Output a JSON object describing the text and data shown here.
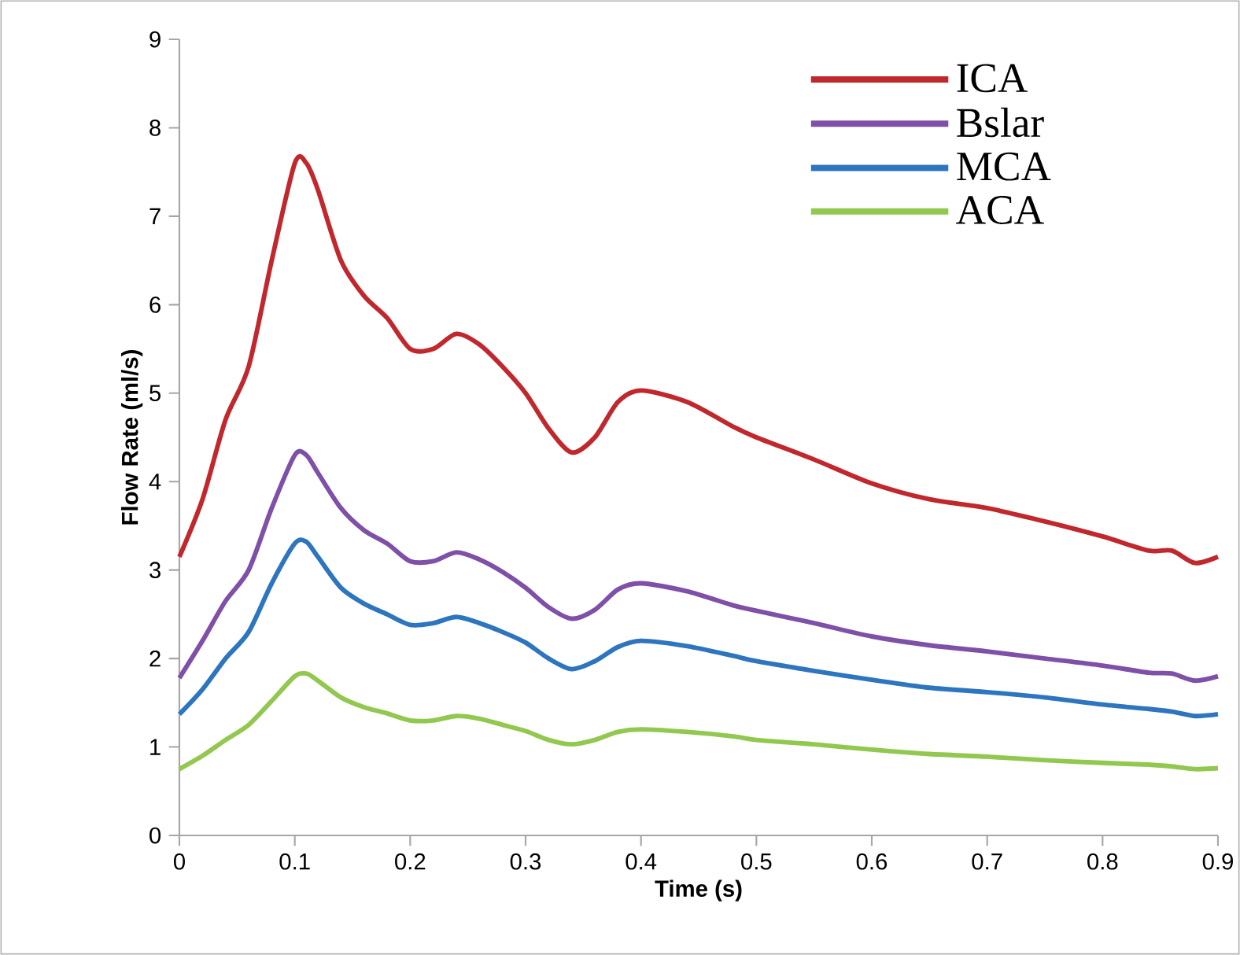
{
  "chart_data": {
    "type": "line",
    "xlabel": "Time (s)",
    "ylabel": "Flow Rate (ml/s)",
    "xlim": [
      0,
      0.9
    ],
    "ylim": [
      0,
      9
    ],
    "xticks": [
      {
        "value": 0,
        "label": "0"
      },
      {
        "value": 0.1,
        "label": "0.1"
      },
      {
        "value": 0.2,
        "label": "0.2"
      },
      {
        "value": 0.3,
        "label": "0.3"
      },
      {
        "value": 0.4,
        "label": "0.4"
      },
      {
        "value": 0.5,
        "label": "0.5"
      },
      {
        "value": 0.6,
        "label": "0.6"
      },
      {
        "value": 0.7,
        "label": "0.7"
      },
      {
        "value": 0.8,
        "label": "0.8"
      },
      {
        "value": 0.9,
        "label": "0.9"
      }
    ],
    "yticks": [
      0,
      1,
      2,
      3,
      4,
      5,
      6,
      7,
      8,
      9
    ],
    "grid": false,
    "legend": "top right",
    "marker": "none",
    "line_style": "solid",
    "x": [
      0,
      0.02,
      0.04,
      0.06,
      0.08,
      0.1,
      0.11,
      0.12,
      0.14,
      0.16,
      0.18,
      0.2,
      0.22,
      0.24,
      0.26,
      0.28,
      0.3,
      0.32,
      0.34,
      0.36,
      0.38,
      0.4,
      0.44,
      0.48,
      0.5,
      0.55,
      0.6,
      0.65,
      0.7,
      0.75,
      0.8,
      0.84,
      0.86,
      0.88,
      0.9
    ],
    "series": [
      {
        "name": "ICA",
        "color": "#c0282d",
        "values": [
          3.15,
          3.8,
          4.7,
          5.3,
          6.5,
          7.6,
          7.6,
          7.3,
          6.5,
          6.1,
          5.85,
          5.5,
          5.5,
          5.67,
          5.55,
          5.3,
          5.0,
          4.6,
          4.33,
          4.5,
          4.9,
          5.03,
          4.9,
          4.62,
          4.5,
          4.25,
          3.98,
          3.8,
          3.7,
          3.55,
          3.38,
          3.22,
          3.22,
          3.08,
          3.15
        ]
      },
      {
        "name": "Bslar",
        "color": "#7f50a7",
        "values": [
          1.78,
          2.2,
          2.65,
          3.0,
          3.7,
          4.3,
          4.3,
          4.1,
          3.7,
          3.45,
          3.3,
          3.1,
          3.1,
          3.2,
          3.12,
          2.98,
          2.8,
          2.58,
          2.45,
          2.55,
          2.78,
          2.85,
          2.76,
          2.6,
          2.54,
          2.4,
          2.25,
          2.15,
          2.08,
          2.0,
          1.92,
          1.84,
          1.83,
          1.75,
          1.8
        ]
      },
      {
        "name": "MCA",
        "color": "#2e75c0",
        "values": [
          1.37,
          1.65,
          2.0,
          2.3,
          2.85,
          3.3,
          3.32,
          3.15,
          2.8,
          2.62,
          2.5,
          2.38,
          2.4,
          2.47,
          2.4,
          2.3,
          2.18,
          2.0,
          1.88,
          1.97,
          2.13,
          2.2,
          2.14,
          2.03,
          1.97,
          1.86,
          1.76,
          1.67,
          1.62,
          1.56,
          1.48,
          1.43,
          1.4,
          1.35,
          1.37
        ]
      },
      {
        "name": "ACA",
        "color": "#92c84f",
        "values": [
          0.75,
          0.9,
          1.08,
          1.25,
          1.52,
          1.8,
          1.83,
          1.75,
          1.56,
          1.45,
          1.38,
          1.3,
          1.3,
          1.35,
          1.32,
          1.25,
          1.18,
          1.08,
          1.03,
          1.08,
          1.17,
          1.2,
          1.17,
          1.12,
          1.08,
          1.03,
          0.97,
          0.92,
          0.89,
          0.85,
          0.82,
          0.8,
          0.78,
          0.75,
          0.76
        ]
      }
    ]
  }
}
